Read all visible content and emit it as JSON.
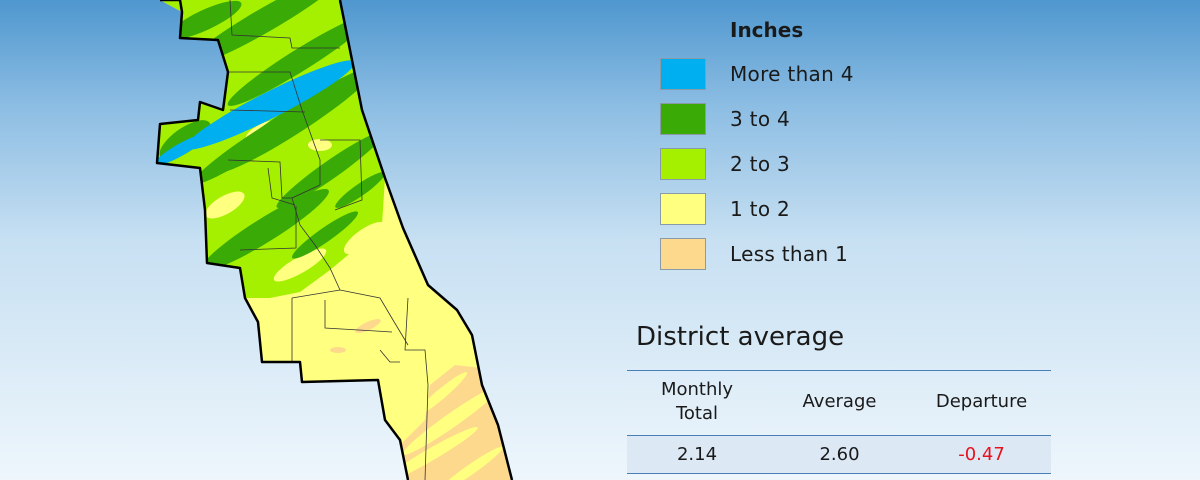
{
  "legend": {
    "title": "Inches",
    "items": [
      {
        "label": "More than 4",
        "color": "#00aff0"
      },
      {
        "label": "3 to 4",
        "color": "#3aaa07"
      },
      {
        "label": "2 to 3",
        "color": "#a4f000"
      },
      {
        "label": "1 to 2",
        "color": "#ffff80"
      },
      {
        "label": "Less than 1",
        "color": "#fdd98e"
      }
    ]
  },
  "district_average": {
    "title": "District average",
    "headers": [
      "Monthly\nTotal",
      "Average",
      "Departure"
    ],
    "values": {
      "monthly_total": "2.14",
      "average": "2.60",
      "departure": "-0.47"
    },
    "departure_color": "#e8121e"
  }
}
